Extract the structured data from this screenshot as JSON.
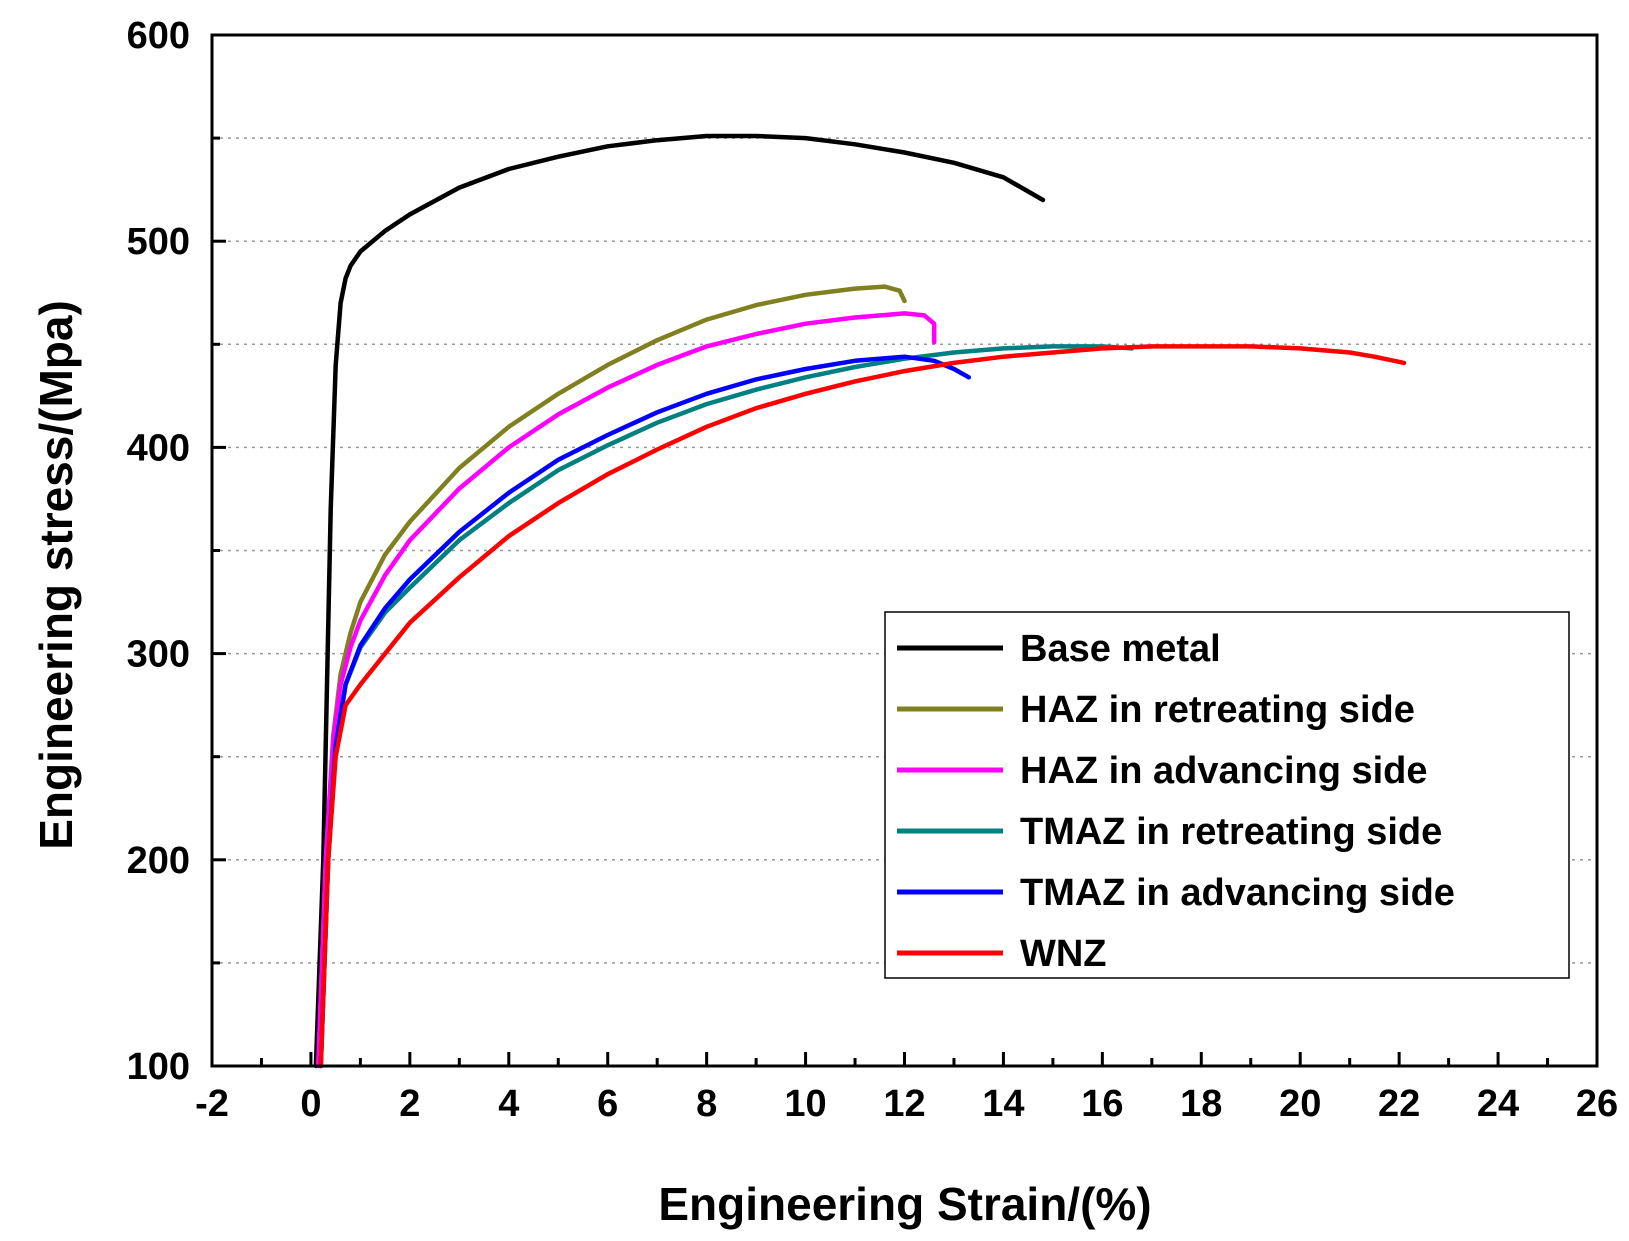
{
  "chart_data": {
    "type": "line",
    "title": "",
    "xlabel": "Engineering Strain/(%)",
    "ylabel": "Engineering stress/(Mpa)",
    "xlim": [
      -2,
      26
    ],
    "ylim": [
      100,
      600
    ],
    "xticks": [
      -2,
      0,
      2,
      4,
      6,
      8,
      10,
      12,
      14,
      16,
      18,
      20,
      22,
      24,
      26
    ],
    "yticks": [
      100,
      200,
      300,
      400,
      500,
      600
    ],
    "grid": "horizontal dotted",
    "legend_position": "bottom-right",
    "series": [
      {
        "name": "Base metal",
        "color": "#000000",
        "x": [
          0.1,
          0.25,
          0.4,
          0.5,
          0.6,
          0.7,
          0.8,
          1.0,
          1.5,
          2,
          3,
          4,
          5,
          6,
          7,
          8,
          9,
          10,
          11,
          12,
          13,
          14,
          14.8
        ],
        "y": [
          100,
          200,
          370,
          440,
          470,
          482,
          488,
          495,
          505,
          513,
          526,
          535,
          541,
          546,
          549,
          551,
          551,
          550,
          547,
          543,
          538,
          531,
          520
        ]
      },
      {
        "name": "HAZ in retreating side",
        "color": "#808020",
        "x": [
          0.15,
          0.3,
          0.45,
          0.6,
          0.8,
          1,
          1.5,
          2,
          3,
          4,
          5,
          6,
          7,
          8,
          9,
          10,
          11,
          11.6,
          11.9,
          12.0
        ],
        "y": [
          100,
          200,
          260,
          290,
          310,
          325,
          348,
          364,
          390,
          410,
          426,
          440,
          452,
          462,
          469,
          474,
          477,
          478,
          476,
          471
        ]
      },
      {
        "name": "HAZ in advancing side",
        "color": "#ff00ff",
        "x": [
          0.15,
          0.3,
          0.45,
          0.6,
          0.8,
          1,
          1.5,
          2,
          3,
          4,
          5,
          6,
          7,
          8,
          9,
          10,
          11,
          12,
          12.4,
          12.6,
          12.6
        ],
        "y": [
          100,
          200,
          258,
          285,
          303,
          316,
          338,
          355,
          380,
          400,
          416,
          429,
          440,
          449,
          455,
          460,
          463,
          465,
          464,
          460,
          451
        ]
      },
      {
        "name": "TMAZ in retreating side",
        "color": "#008080",
        "x": [
          0.2,
          0.35,
          0.5,
          0.7,
          1,
          1.5,
          2,
          3,
          4,
          5,
          6,
          7,
          8,
          9,
          10,
          11,
          12,
          13,
          14,
          15,
          16,
          16.6
        ],
        "y": [
          100,
          200,
          255,
          285,
          303,
          320,
          332,
          355,
          373,
          389,
          401,
          412,
          421,
          428,
          434,
          439,
          443,
          446,
          448,
          449,
          449,
          448
        ]
      },
      {
        "name": "TMAZ in advancing side",
        "color": "#0000ff",
        "x": [
          0.2,
          0.35,
          0.5,
          0.7,
          1,
          1.5,
          2,
          3,
          4,
          5,
          6,
          7,
          8,
          9,
          10,
          11,
          12,
          12.6,
          13.0,
          13.3
        ],
        "y": [
          100,
          200,
          255,
          285,
          304,
          322,
          336,
          359,
          378,
          394,
          406,
          417,
          426,
          433,
          438,
          442,
          444,
          442,
          438,
          434
        ]
      },
      {
        "name": "WNZ",
        "color": "#ff0000",
        "x": [
          0.2,
          0.35,
          0.5,
          0.7,
          1,
          1.5,
          2,
          3,
          4,
          5,
          6,
          7,
          8,
          9,
          10,
          11,
          12,
          13,
          14,
          15,
          16,
          17,
          18,
          19,
          20,
          21,
          21.5,
          22.1
        ],
        "y": [
          100,
          200,
          250,
          275,
          285,
          300,
          315,
          337,
          357,
          373,
          387,
          399,
          410,
          419,
          426,
          432,
          437,
          441,
          444,
          446,
          448,
          449,
          449,
          449,
          448,
          446,
          444,
          441
        ]
      }
    ]
  }
}
